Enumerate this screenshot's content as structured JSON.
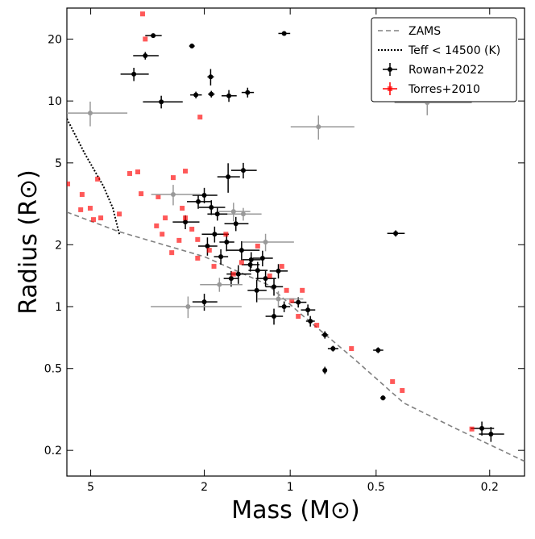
{
  "chart_data": {
    "type": "scatter",
    "xlabel": "Mass (M⊙)",
    "ylabel": "Radius (R⊙)",
    "xscale": "log",
    "yscale": "log",
    "xlim": [
      6.06,
      0.151
    ],
    "ylim": [
      0.15,
      28.3
    ],
    "xticks": [
      5,
      2,
      1,
      0.5,
      0.2
    ],
    "yticks": [
      0.2,
      0.5,
      1,
      2,
      5,
      10,
      20
    ],
    "legend": "upper right",
    "series": [
      {
        "name": "ZAMS",
        "kind": "line",
        "style": "dashed",
        "color": "#808080",
        "x": [
          6.06,
          4,
          2,
          1.2,
          0.9,
          0.6,
          0.4,
          0.27,
          0.151
        ],
        "y": [
          2.88,
          2.32,
          1.75,
          1.28,
          0.9,
          0.56,
          0.34,
          0.26,
          0.177
        ]
      },
      {
        "name": "Teff < 14500 (K)",
        "kind": "line",
        "style": "dotted",
        "color": "#000000",
        "x": [
          6.06,
          5.25,
          4.52,
          4.18,
          3.97
        ],
        "y": [
          8.2,
          5.56,
          3.87,
          3.01,
          2.25
        ]
      },
      {
        "name": "Rowan+2022",
        "kind": "errorbar",
        "marker": "circle",
        "color": "#000000",
        "x": [
          3.02,
          3.22,
          3.53,
          2.83,
          2.21,
          1.05,
          1.9,
          2.14,
          1.89,
          1.64,
          1.41,
          0.427,
          1.65,
          1.46,
          2.0,
          1.89,
          1.8,
          1.55,
          1.84,
          1.67,
          1.95,
          1.48,
          1.75,
          1.37,
          1.3,
          1.52,
          1.61,
          1.22,
          1.14,
          1.31,
          1.38,
          1.25,
          1.1,
          1.05,
          0.937,
          0.867,
          1.14,
          0.85,
          0.756,
          0.708,
          0.756,
          0.492,
          0.473,
          0.213,
          0.198,
          2.0,
          2.33,
          2.1
        ],
        "y": [
          20.8,
          16.6,
          13.5,
          9.9,
          18.5,
          21.3,
          13.1,
          10.7,
          10.8,
          10.6,
          11.0,
          2.27,
          4.28,
          4.6,
          3.48,
          3.04,
          2.82,
          2.53,
          2.25,
          2.06,
          1.97,
          1.88,
          1.75,
          1.69,
          1.5,
          1.44,
          1.37,
          1.37,
          1.25,
          1.2,
          1.6,
          1.72,
          1.49,
          1.0,
          1.05,
          0.964,
          0.897,
          0.85,
          0.729,
          0.625,
          0.49,
          0.614,
          0.36,
          0.256,
          0.24,
          1.055,
          2.58,
          3.24
        ],
        "xerr": [
          0.2,
          0.33,
          0.4,
          0.45,
          0.05,
          0.05,
          0.05,
          0.1,
          0.05,
          0.1,
          0.07,
          0.03,
          0.15,
          0.15,
          0.2,
          0.2,
          0.15,
          0.15,
          0.2,
          0.1,
          0.15,
          0.2,
          0.1,
          0.1,
          0.1,
          0.15,
          0.1,
          0.1,
          0.08,
          0.1,
          0.1,
          0.1,
          0.08,
          0.05,
          0.06,
          0.05,
          0.08,
          0.03,
          0.02,
          0.03,
          0.01,
          0.02,
          0.01,
          0.02,
          0.02,
          0.2,
          0.25,
          0.2
        ],
        "yerr": [
          0.5,
          0.7,
          1.0,
          0.7,
          0.5,
          0.5,
          1.2,
          0.4,
          0.4,
          0.7,
          0.6,
          0.08,
          0.7,
          0.4,
          0.3,
          0.25,
          0.2,
          0.2,
          0.2,
          0.2,
          0.2,
          0.2,
          0.15,
          0.15,
          0.15,
          0.15,
          0.12,
          0.12,
          0.12,
          0.15,
          0.12,
          0.15,
          0.12,
          0.06,
          0.06,
          0.06,
          0.08,
          0.05,
          0.03,
          0.02,
          0.02,
          0.02,
          0.01,
          0.02,
          0.02,
          0.1,
          0.2,
          0.25
        ]
      },
      {
        "name": "Torres+2010",
        "kind": "errorbar",
        "marker": "square",
        "color": "#ff0000",
        "x": [
          3.29,
          3.22,
          2.07,
          6.02,
          5.36,
          4.73,
          5.42,
          5.02,
          4.89,
          4.61,
          3.97,
          3.65,
          3.42,
          3.33,
          2.9,
          2.94,
          2.81,
          2.6,
          2.57,
          2.33,
          2.39,
          2.33,
          2.21,
          2.11,
          2.45,
          1.85,
          1.58,
          1.48,
          1.18,
          1.07,
          1.03,
          0.907,
          0.987,
          0.937,
          0.807,
          0.61,
          0.438,
          0.405,
          0.231,
          1.3,
          1.68,
          2.11,
          1.92,
          2.74
        ],
        "y": [
          26.5,
          20.0,
          8.35,
          3.95,
          3.51,
          4.17,
          2.96,
          3.01,
          2.65,
          2.7,
          2.82,
          4.44,
          4.52,
          3.54,
          3.42,
          2.47,
          2.25,
          1.83,
          4.24,
          4.56,
          3.01,
          2.7,
          2.38,
          2.12,
          2.1,
          1.57,
          1.44,
          1.64,
          1.41,
          1.57,
          1.2,
          1.2,
          1.07,
          0.897,
          0.812,
          0.625,
          0.432,
          0.391,
          0.254,
          1.97,
          2.25,
          1.72,
          1.88,
          2.7
        ]
      },
      {
        "kind": "errorbar",
        "marker": "circle",
        "color": "#999999",
        "x": [
          5.02,
          0.796,
          0.331,
          2.57,
          2.28,
          1.77,
          1.58,
          1.46,
          1.22,
          1.1
        ],
        "y": [
          8.73,
          7.49,
          9.82,
          3.51,
          1.0,
          1.28,
          2.9,
          2.82,
          2.06,
          1.09
        ],
        "xerr": [
          1.3,
          0.2,
          0.1,
          0.5,
          0.8,
          0.3,
          0.2,
          0.2,
          0.25,
          0.2
        ],
        "yerr": [
          1.2,
          1.0,
          1.3,
          0.4,
          0.12,
          0.1,
          0.3,
          0.2,
          0.2,
          0.1
        ]
      }
    ]
  }
}
